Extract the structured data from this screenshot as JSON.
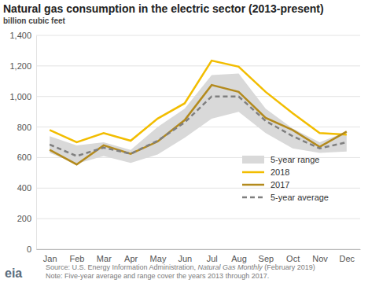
{
  "chart_data": {
    "type": "line",
    "title": "Natural gas consumption in the electric sector (2013-present)",
    "subtitle": "billion cubic feet",
    "categories": [
      "Jan",
      "Feb",
      "Mar",
      "Apr",
      "May",
      "Jun",
      "Jul",
      "Aug",
      "Sep",
      "Oct",
      "Nov",
      "Dec"
    ],
    "series": [
      {
        "name": "5-year range",
        "type": "range",
        "color": "#d9d9d9",
        "low": [
          630,
          560,
          610,
          565,
          620,
          730,
          855,
          900,
          760,
          660,
          630,
          640
        ],
        "values": [
          740,
          680,
          700,
          650,
          800,
          920,
          1140,
          1150,
          920,
          790,
          700,
          770
        ]
      },
      {
        "name": "2018",
        "type": "line",
        "color": "#f2bd00",
        "line_style": "solid",
        "values": [
          780,
          700,
          760,
          710,
          855,
          955,
          1235,
          1195,
          1030,
          890,
          760,
          750
        ]
      },
      {
        "name": "2017",
        "type": "line",
        "color": "#b38a1d",
        "line_style": "solid",
        "values": [
          650,
          555,
          680,
          625,
          705,
          845,
          1075,
          1030,
          860,
          780,
          670,
          770
        ]
      },
      {
        "name": "5-year average",
        "type": "line",
        "color": "#7f7f7f",
        "line_style": "dashed",
        "values": [
          685,
          610,
          665,
          625,
          710,
          830,
          1000,
          1000,
          840,
          740,
          660,
          700
        ]
      }
    ],
    "ylim": [
      0,
      1400
    ],
    "yticks": [
      0,
      200,
      400,
      600,
      800,
      {
        "value": 1000,
        "label": "1,000"
      },
      {
        "value": 1200,
        "label": "1,200"
      },
      {
        "value": 1400,
        "label": "1,400"
      }
    ],
    "grid": true,
    "legend": "lower right",
    "source": [
      "Source: U.S. Energy Information Administration, ",
      "Natural Gas Monthly",
      " (February 2019)"
    ],
    "note": "Note: Five-year average and range cover the years 2013 through 2017.",
    "logo": "eia"
  }
}
